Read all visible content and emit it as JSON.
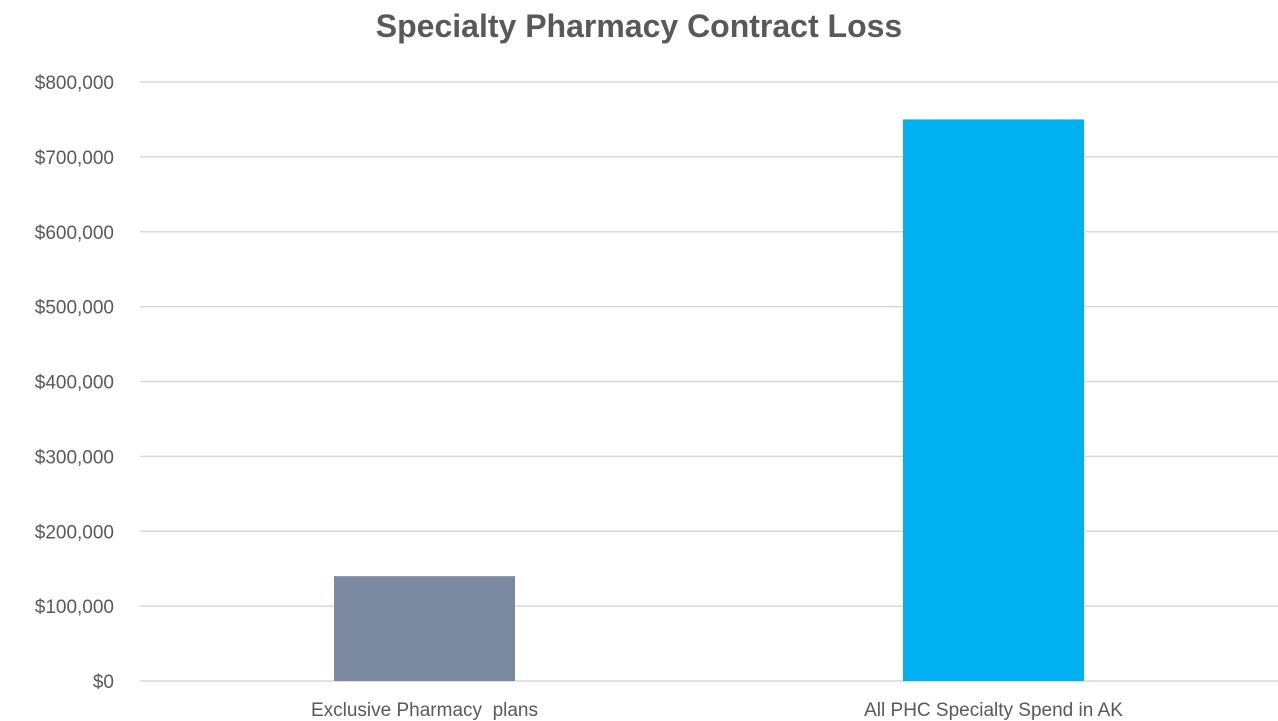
{
  "chart_data": {
    "type": "bar",
    "title": "Specialty Pharmacy Contract Loss",
    "xlabel": "",
    "ylabel": "",
    "categories": [
      "Exclusive Pharmacy  plans",
      "All PHC Specialty Spend in AK"
    ],
    "values": [
      140000,
      750000
    ],
    "bar_colors": [
      "#7b8aa0",
      "#00b0f0"
    ],
    "ylim": [
      0,
      800000
    ],
    "yticks": [
      0,
      100000,
      200000,
      300000,
      400000,
      500000,
      600000,
      700000,
      800000
    ],
    "ytick_labels": [
      "$0",
      "$100,000",
      "$200,000",
      "$300,000",
      "$400,000",
      "$500,000",
      "$600,000",
      "$700,000",
      "$800,000"
    ],
    "grid": true,
    "legend": "none"
  }
}
